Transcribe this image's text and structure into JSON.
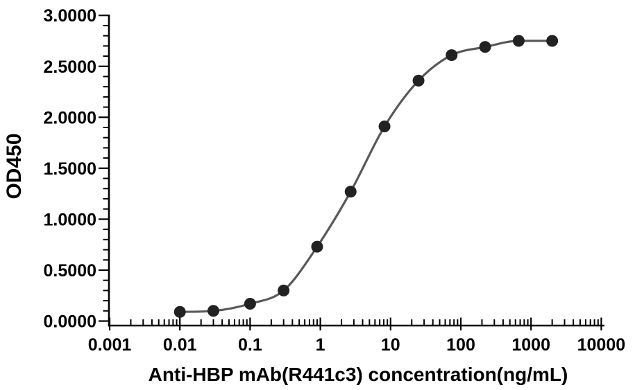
{
  "chart_data": {
    "type": "scatter",
    "subtype": "dose-response-curve-with-4PL-fit",
    "title": "",
    "xlabel": "Anti-HBP mAb(R441c3) concentration(ng/mL)",
    "ylabel": "OD450",
    "x_scale": "log10",
    "xlim": [
      0.001,
      10000
    ],
    "ylim": [
      0.0,
      3.0
    ],
    "grid": "off",
    "legend": "none",
    "x_tick_labels": [
      "0.001",
      "0.01",
      "0.1",
      "1",
      "10",
      "100",
      "1000",
      "10000"
    ],
    "y_tick_labels": [
      "0.0000",
      "0.5000",
      "1.0000",
      "1.5000",
      "2.0000",
      "2.5000",
      "3.0000"
    ],
    "y_major_step": 0.5,
    "y_minor_step": 0.1,
    "x_minor_ticks": "log-decade-2-through-9",
    "series": [
      {
        "name": "Anti-HBP mAb(R441c3)",
        "x": [
          0.01,
          0.03,
          0.1,
          0.3,
          0.9,
          2.7,
          8.2,
          25,
          74,
          222,
          667,
          2000
        ],
        "y": [
          0.09,
          0.1,
          0.17,
          0.3,
          0.73,
          1.27,
          1.91,
          2.36,
          2.61,
          2.69,
          2.75,
          2.75
        ]
      }
    ],
    "colors": {
      "background": "#ffffff",
      "axis": "#000000",
      "tick_label": "#000000",
      "curve": "#595959",
      "marker": "#222222"
    },
    "marker": {
      "shape": "circle",
      "radius_px": 8.5
    }
  }
}
